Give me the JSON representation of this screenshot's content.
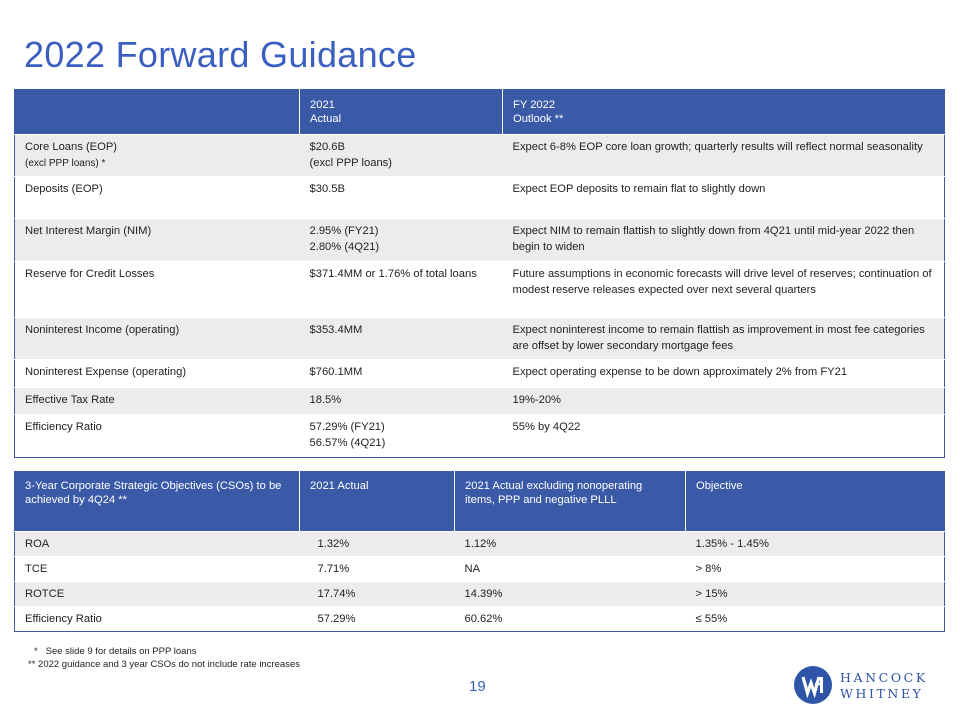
{
  "page": {
    "title": "2022 Forward Guidance",
    "page_number": "19"
  },
  "guidance_table": {
    "header": {
      "col1": "",
      "col2_line1": "2021",
      "col2_line2": "Actual",
      "col3_line1": "FY 2022",
      "col3_line2": "Outlook **"
    },
    "rows": [
      {
        "metric": "Core Loans (EOP)",
        "metric_sub": "(excl PPP loans) *",
        "actual_line1": "$20.6B",
        "actual_line2": "(excl PPP loans)",
        "outlook": "Expect 6-8% EOP core loan growth; quarterly results will reflect normal seasonality"
      },
      {
        "metric": "Deposits (EOP)",
        "metric_sub": "",
        "actual_line1": "$30.5B",
        "actual_line2": "",
        "outlook": "Expect EOP deposits to remain flat to slightly down"
      },
      {
        "metric": "Net Interest Margin (NIM)",
        "metric_sub": "",
        "actual_line1": "2.95% (FY21)",
        "actual_line2": "2.80% (4Q21)",
        "outlook": "Expect NIM to remain flattish to slightly down from 4Q21 until mid-year 2022 then begin to widen"
      },
      {
        "metric": "Reserve for Credit Losses",
        "metric_sub": "",
        "actual_line1": "$371.4MM or 1.76% of total loans",
        "actual_line2": "",
        "outlook": "Future assumptions in economic forecasts will drive level of reserves; continuation of modest reserve releases expected over next several quarters"
      },
      {
        "metric": "Noninterest Income (operating)",
        "metric_sub": "",
        "actual_line1": "$353.4MM",
        "actual_line2": "",
        "outlook": "Expect noninterest income to remain flattish as improvement in most fee categories are offset by lower secondary mortgage fees"
      },
      {
        "metric": "Noninterest Expense (operating)",
        "metric_sub": "",
        "actual_line1": "$760.1MM",
        "actual_line2": "",
        "outlook": "Expect operating expense to be down approximately 2% from FY21"
      },
      {
        "metric": "Effective Tax Rate",
        "metric_sub": "",
        "actual_line1": "18.5%",
        "actual_line2": "",
        "outlook": "19%-20%"
      },
      {
        "metric": "Efficiency Ratio",
        "metric_sub": "",
        "actual_line1": "57.29% (FY21)",
        "actual_line2": "56.57% (4Q21)",
        "outlook": "55% by 4Q22"
      }
    ]
  },
  "cso_table": {
    "header": {
      "col1": "3-Year Corporate Strategic Objectives (CSOs) to be achieved by 4Q24 **",
      "col2": "2021 Actual",
      "col3": "2021 Actual excluding nonoperating items, PPP and negative PLLL",
      "col4": "Objective"
    },
    "rows": [
      {
        "metric": "ROA",
        "actual": "1.32%",
        "adjusted": "1.12%",
        "objective": "1.35% - 1.45%"
      },
      {
        "metric": "TCE",
        "actual": "7.71%",
        "adjusted": "NA",
        "objective": "> 8%"
      },
      {
        "metric": "ROTCE",
        "actual": "17.74%",
        "adjusted": "14.39%",
        "objective": "> 15%"
      },
      {
        "metric": "Efficiency Ratio",
        "actual": "57.29%",
        "adjusted": "60.62%",
        "objective": "≤ 55%"
      }
    ]
  },
  "footnotes": {
    "note1": "*   See slide 9 for details on PPP loans",
    "note2": "** 2022 guidance and 3 year CSOs do not include rate increases"
  },
  "logo": {
    "line1": "HANCOCK",
    "line2": "WHITNEY",
    "brand_color": "#2f55a8"
  }
}
